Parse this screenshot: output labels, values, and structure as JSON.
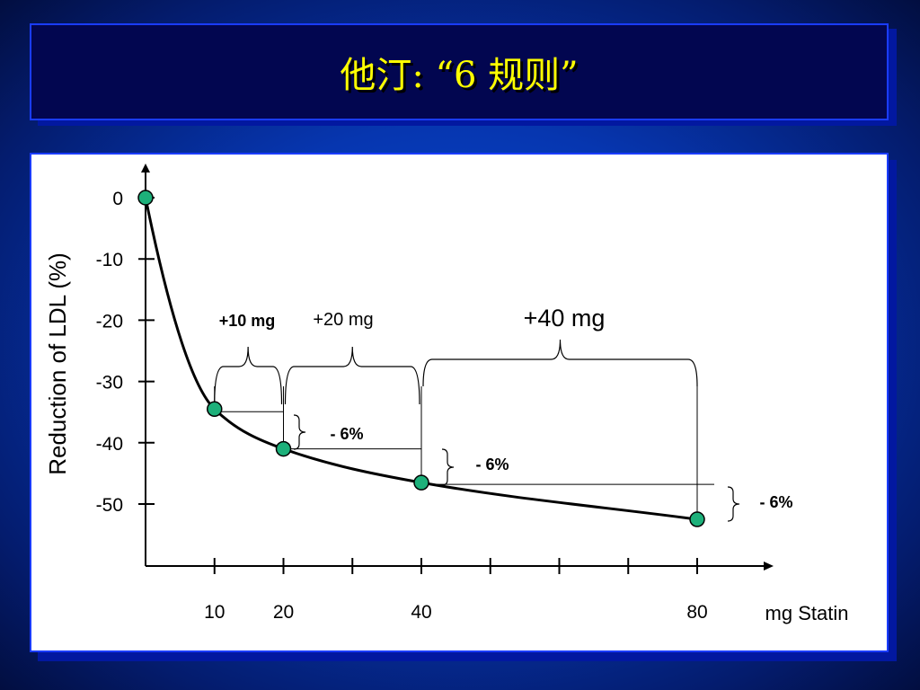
{
  "title": "他汀: “6 规则”",
  "chart_data": {
    "type": "line",
    "ylabel": "Reduction of LDL (%)",
    "xlabel": "mg Statin",
    "y_ticks": [
      "0",
      "-10",
      "-20",
      "-30",
      "-40",
      "-50"
    ],
    "y_tick_values": [
      0,
      -10,
      -20,
      -30,
      -40,
      -50
    ],
    "ylim": [
      -60,
      6
    ],
    "x_tick_labels": [
      "10",
      "20",
      "40",
      "80"
    ],
    "x_tick_values": [
      10,
      20,
      40,
      80
    ],
    "x_minor_ticks": [
      30,
      50,
      60,
      70
    ],
    "xlim": [
      0,
      90
    ],
    "points": [
      {
        "x": 0,
        "y": 0
      },
      {
        "x": 10,
        "y": -34.5
      },
      {
        "x": 20,
        "y": -41
      },
      {
        "x": 40,
        "y": -46.5
      },
      {
        "x": 80,
        "y": -52.5
      }
    ],
    "dose_increments": [
      "+10 mg",
      "+20 mg",
      "+40 mg"
    ],
    "reduction_steps": [
      "- 6%",
      "- 6%",
      "- 6%"
    ],
    "grid": false,
    "colors": {
      "curve": "#000000",
      "marker": "#1db07a",
      "axis": "#000000"
    }
  }
}
